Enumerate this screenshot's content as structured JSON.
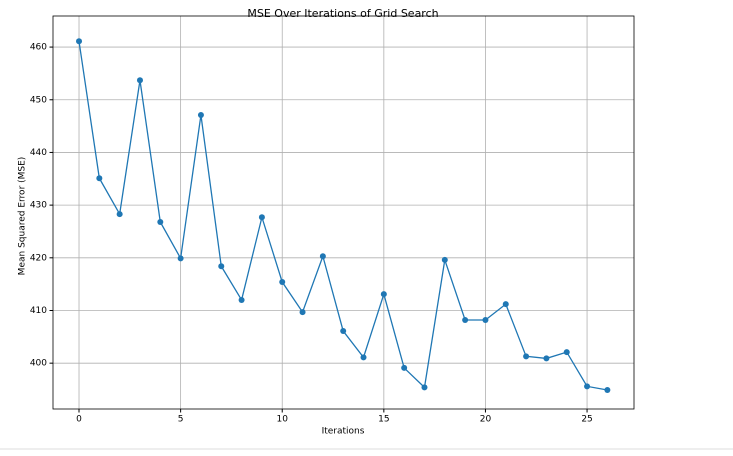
{
  "chart_data": {
    "type": "line",
    "title": "MSE Over Iterations of Grid Search",
    "x_label": "Iterations",
    "y_label": "Mean Squared Error (MSE)",
    "x": [
      0,
      1,
      2,
      3,
      4,
      5,
      6,
      7,
      8,
      9,
      10,
      11,
      12,
      13,
      14,
      15,
      16,
      17,
      18,
      19,
      20,
      21,
      22,
      23,
      24,
      25,
      26
    ],
    "series": [
      {
        "name": "MSE",
        "color": "#1f77b4",
        "values": [
          461.1,
          435.1,
          428.3,
          453.7,
          426.8,
          419.9,
          447.1,
          418.4,
          412.0,
          427.7,
          415.4,
          409.7,
          420.3,
          406.1,
          401.1,
          413.1,
          399.1,
          395.4,
          419.6,
          408.2,
          408.2,
          411.2,
          401.3,
          400.9,
          402.1,
          395.6,
          394.9
        ]
      }
    ],
    "xlim": [
      -1.28,
      27.31
    ],
    "ylim": [
      391.3,
      465.9
    ],
    "xticks": [
      0,
      5,
      10,
      15,
      20,
      25
    ],
    "yticks": [
      400,
      410,
      420,
      430,
      440,
      450,
      460
    ],
    "grid": true,
    "markers": true
  }
}
